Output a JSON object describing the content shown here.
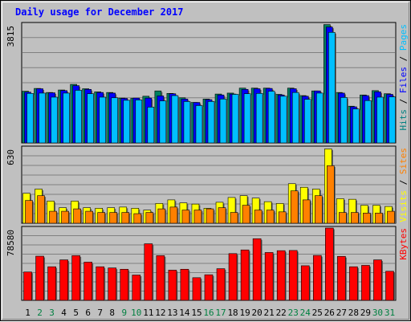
{
  "chart_data": {
    "type": "bar",
    "title": "Daily usage for December 2017",
    "title_color": "#0000ff",
    "background": "#c0c0c0",
    "grid": true,
    "categories": [
      "1",
      "2",
      "3",
      "4",
      "5",
      "6",
      "7",
      "8",
      "9",
      "10",
      "11",
      "12",
      "13",
      "14",
      "15",
      "16",
      "17",
      "18",
      "19",
      "20",
      "21",
      "22",
      "23",
      "24",
      "25",
      "26",
      "27",
      "28",
      "29",
      "30",
      "31"
    ],
    "weekend_days": [
      "2",
      "3",
      "9",
      "10",
      "16",
      "17",
      "23",
      "24",
      "30",
      "31"
    ],
    "weekday_label_color": "#000000",
    "weekend_label_color": "#008040",
    "panels": [
      {
        "name": "hits-files-pages",
        "ymax_label": "3815",
        "ymax": 3815,
        "axis_label_parts": [
          {
            "text": "Hits",
            "color": "#008080"
          },
          {
            "text": " / ",
            "color": "#000000"
          },
          {
            "text": "Files",
            "color": "#0000ff"
          },
          {
            "text": " / ",
            "color": "#000000"
          },
          {
            "text": "Pages",
            "color": "#00bfff"
          }
        ],
        "series": [
          {
            "name": "Hits",
            "color": "#008060",
            "values": [
              1660,
              1750,
              1620,
              1700,
              1880,
              1740,
              1640,
              1620,
              1440,
              1430,
              1500,
              1670,
              1590,
              1450,
              1300,
              1410,
              1570,
              1600,
              1760,
              1760,
              1760,
              1560,
              1760,
              1520,
              1670,
              3800,
              1620,
              1180,
              1540,
              1680,
              1580
            ]
          },
          {
            "name": "Files",
            "color": "#0000ff",
            "values": [
              1630,
              1740,
              1610,
              1680,
              1840,
              1720,
              1620,
              1600,
              1430,
              1440,
              1440,
              1510,
              1580,
              1410,
              1300,
              1390,
              1540,
              1570,
              1720,
              1740,
              1750,
              1540,
              1740,
              1500,
              1670,
              3720,
              1600,
              1160,
              1520,
              1640,
              1560
            ]
          },
          {
            "name": "Pages",
            "color": "#00bfff",
            "values": [
              1590,
              1600,
              1470,
              1600,
              1690,
              1580,
              1470,
              1450,
              1370,
              1380,
              1150,
              1350,
              1520,
              1330,
              1200,
              1330,
              1410,
              1560,
              1580,
              1590,
              1660,
              1500,
              1620,
              1400,
              1600,
              3550,
              1460,
              1090,
              1360,
              1470,
              1480
            ]
          }
        ]
      },
      {
        "name": "visits-sites",
        "ymax_label": "630",
        "ymax": 630,
        "axis_label_parts": [
          {
            "text": "Visits",
            "color": "#ffff00"
          },
          {
            "text": " / ",
            "color": "#000000"
          },
          {
            "text": "Sites",
            "color": "#ff8000"
          }
        ],
        "series": [
          {
            "name": "Visits",
            "color": "#ffff00",
            "values": [
              250,
              285,
              185,
              130,
              185,
              130,
              125,
              130,
              135,
              125,
              110,
              165,
              195,
              170,
              160,
              125,
              175,
              215,
              230,
              210,
              180,
              165,
              330,
              300,
              285,
              620,
              205,
              200,
              150,
              150,
              140
            ]
          },
          {
            "name": "Sites",
            "color": "#ff8000",
            "values": [
              190,
              230,
              100,
              100,
              120,
              100,
              90,
              90,
              90,
              80,
              90,
              120,
              135,
              110,
              110,
              120,
              130,
              90,
              150,
              110,
              110,
              95,
              270,
              195,
              230,
              480,
              90,
              90,
              85,
              85,
              100
            ]
          }
        ]
      },
      {
        "name": "kbytes",
        "ymax_label": "78580",
        "ymax": 78580,
        "axis_label_parts": [
          {
            "text": "KBytes",
            "color": "#ff0000"
          }
        ],
        "series": [
          {
            "name": "KBytes",
            "color": "#ff0000",
            "values": [
              30800,
              48000,
              36500,
              44000,
              48600,
              41500,
              36500,
              35200,
              33800,
              27500,
              61500,
              48600,
              32800,
              33800,
              24600,
              27800,
              34400,
              50800,
              54800,
              67000,
              52000,
              54000,
              54200,
              37600,
              48800,
              78600,
              47800,
              36500,
              38000,
              44000,
              31600
            ]
          }
        ]
      }
    ]
  }
}
